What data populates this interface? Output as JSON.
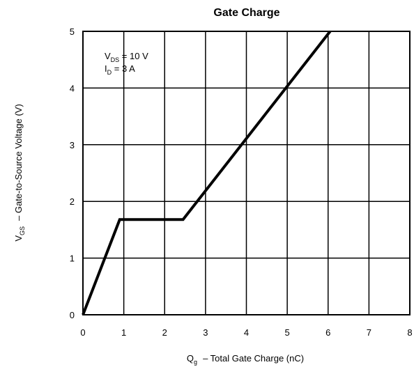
{
  "chart_data": {
    "type": "line",
    "title": "Gate Charge",
    "xlabel": {
      "symbol": "Q",
      "sub": "g",
      "text": "–  Total Gate Charge (nC)"
    },
    "ylabel": {
      "symbol": "V",
      "sub": "GS",
      "text": "–  Gate-to-Source Voltage (V)"
    },
    "xlim": [
      0,
      8
    ],
    "ylim": [
      0,
      5
    ],
    "xticks": [
      "0",
      "1",
      "2",
      "3",
      "4",
      "5",
      "6",
      "7",
      "8"
    ],
    "yticks": [
      "0",
      "1",
      "2",
      "3",
      "4",
      "5"
    ],
    "grid": true,
    "annotations": [
      {
        "symbol": "V",
        "sub": "DS",
        "text": " = 10 V"
      },
      {
        "symbol": "I",
        "sub": "D",
        "text": " = 3 A"
      }
    ],
    "series": [
      {
        "color": "#000000",
        "points": [
          [
            0,
            0
          ],
          [
            0.9,
            1.68
          ],
          [
            2.45,
            1.68
          ],
          [
            6.05,
            5.0
          ]
        ]
      }
    ]
  }
}
